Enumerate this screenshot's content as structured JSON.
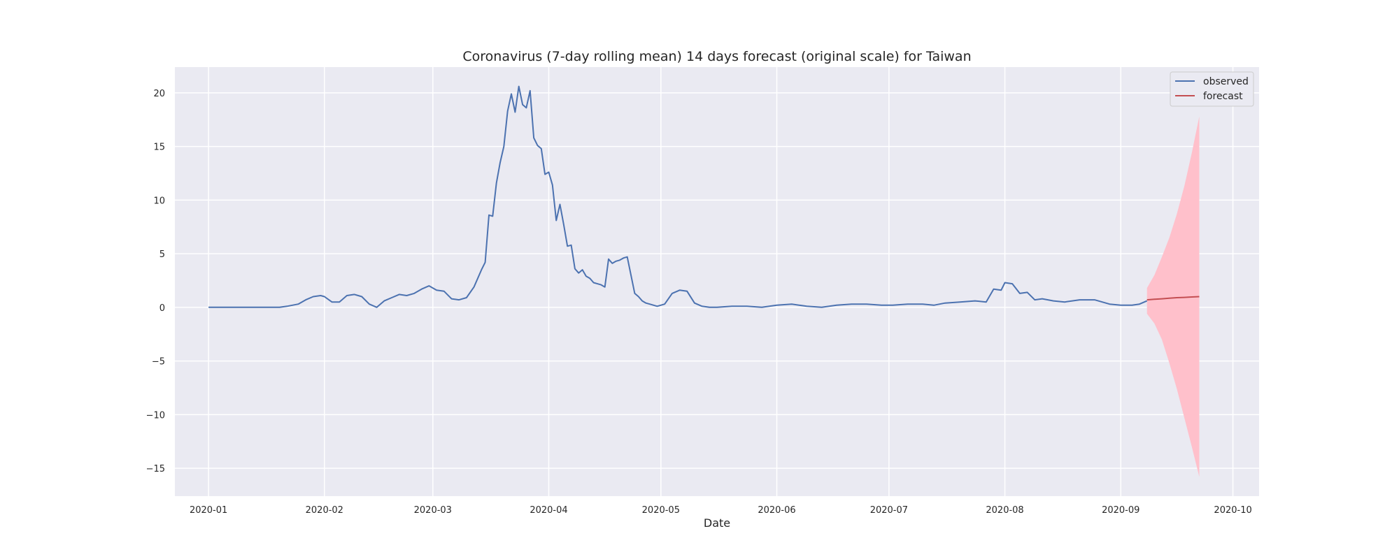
{
  "chart_data": {
    "type": "line",
    "title": "Coronavirus (7-day rolling mean) 14 days forecast (original scale) for Taiwan",
    "xlabel": "Date",
    "ylabel": "",
    "xlim": [
      "2019-12-23",
      "2020-10-08"
    ],
    "ylim": [
      -17.6,
      22.4
    ],
    "x_ticks": [
      "2020-01",
      "2020-02",
      "2020-03",
      "2020-04",
      "2020-05",
      "2020-06",
      "2020-07",
      "2020-08",
      "2020-09",
      "2020-10"
    ],
    "y_ticks": [
      20,
      15,
      10,
      5,
      0,
      -5,
      -10,
      -15
    ],
    "y_tick_labels": [
      "20",
      "15",
      "10",
      "5",
      "0",
      "−5",
      "−10",
      "−15"
    ],
    "grid": true,
    "legend_position": "top-right",
    "colors": {
      "background": "#eaeaf2",
      "grid": "#ffffff",
      "observed": "#4c72b0",
      "forecast": "#c44e52",
      "confidence_band": "#ffc0cb"
    },
    "series": [
      {
        "name": "observed",
        "x": [
          "2020-01-01",
          "2020-01-05",
          "2020-01-10",
          "2020-01-15",
          "2020-01-20",
          "2020-01-22",
          "2020-01-25",
          "2020-01-27",
          "2020-01-29",
          "2020-01-31",
          "2020-02-01",
          "2020-02-03",
          "2020-02-05",
          "2020-02-07",
          "2020-02-09",
          "2020-02-11",
          "2020-02-13",
          "2020-02-15",
          "2020-02-17",
          "2020-02-19",
          "2020-02-21",
          "2020-02-23",
          "2020-02-25",
          "2020-02-27",
          "2020-02-29",
          "2020-03-02",
          "2020-03-04",
          "2020-03-06",
          "2020-03-08",
          "2020-03-10",
          "2020-03-12",
          "2020-03-14",
          "2020-03-15",
          "2020-03-16",
          "2020-03-17",
          "2020-03-18",
          "2020-03-19",
          "2020-03-20",
          "2020-03-21",
          "2020-03-22",
          "2020-03-23",
          "2020-03-24",
          "2020-03-25",
          "2020-03-26",
          "2020-03-27",
          "2020-03-28",
          "2020-03-29",
          "2020-03-30",
          "2020-03-31",
          "2020-04-01",
          "2020-04-02",
          "2020-04-03",
          "2020-04-04",
          "2020-04-05",
          "2020-04-06",
          "2020-04-07",
          "2020-04-08",
          "2020-04-09",
          "2020-04-10",
          "2020-04-11",
          "2020-04-12",
          "2020-04-13",
          "2020-04-14",
          "2020-04-15",
          "2020-04-16",
          "2020-04-17",
          "2020-04-18",
          "2020-04-19",
          "2020-04-20",
          "2020-04-21",
          "2020-04-22",
          "2020-04-24",
          "2020-04-25",
          "2020-04-26",
          "2020-04-27",
          "2020-04-28",
          "2020-04-30",
          "2020-05-02",
          "2020-05-04",
          "2020-05-06",
          "2020-05-08",
          "2020-05-10",
          "2020-05-12",
          "2020-05-14",
          "2020-05-16",
          "2020-05-20",
          "2020-05-24",
          "2020-05-28",
          "2020-06-01",
          "2020-06-05",
          "2020-06-09",
          "2020-06-13",
          "2020-06-17",
          "2020-06-21",
          "2020-06-25",
          "2020-06-29",
          "2020-07-02",
          "2020-07-06",
          "2020-07-10",
          "2020-07-13",
          "2020-07-16",
          "2020-07-20",
          "2020-07-24",
          "2020-07-27",
          "2020-07-29",
          "2020-07-31",
          "2020-08-01",
          "2020-08-03",
          "2020-08-05",
          "2020-08-07",
          "2020-08-09",
          "2020-08-11",
          "2020-08-14",
          "2020-08-17",
          "2020-08-21",
          "2020-08-25",
          "2020-08-29",
          "2020-09-01",
          "2020-09-04",
          "2020-09-06",
          "2020-09-08"
        ],
        "values": [
          0,
          0,
          0,
          0,
          0,
          0.1,
          0.3,
          0.7,
          1.0,
          1.1,
          1.0,
          0.5,
          0.5,
          1.1,
          1.2,
          1.0,
          0.3,
          0.0,
          0.6,
          0.9,
          1.2,
          1.1,
          1.3,
          1.7,
          2.0,
          1.6,
          1.5,
          0.8,
          0.7,
          0.9,
          1.9,
          3.5,
          4.2,
          8.6,
          8.5,
          11.6,
          13.5,
          15.0,
          18.3,
          19.9,
          18.2,
          20.6,
          18.9,
          18.6,
          20.2,
          15.8,
          15.1,
          14.8,
          12.4,
          12.6,
          11.4,
          8.1,
          9.6,
          7.7,
          5.7,
          5.8,
          3.6,
          3.2,
          3.5,
          2.9,
          2.7,
          2.3,
          2.2,
          2.1,
          1.9,
          4.5,
          4.1,
          4.3,
          4.4,
          4.6,
          4.7,
          1.3,
          1.0,
          0.6,
          0.4,
          0.3,
          0.1,
          0.3,
          1.3,
          1.6,
          1.5,
          0.4,
          0.1,
          0,
          0,
          0.1,
          0.1,
          0,
          0.2,
          0.3,
          0.1,
          0,
          0.2,
          0.3,
          0.3,
          0.2,
          0.2,
          0.3,
          0.3,
          0.2,
          0.4,
          0.5,
          0.6,
          0.5,
          1.7,
          1.6,
          2.3,
          2.2,
          1.3,
          1.4,
          0.7,
          0.8,
          0.6,
          0.5,
          0.7,
          0.7,
          0.3,
          0.2,
          0.2,
          0.3,
          0.6
        ]
      },
      {
        "name": "forecast",
        "x": [
          "2020-09-08",
          "2020-09-10",
          "2020-09-12",
          "2020-09-14",
          "2020-09-16",
          "2020-09-18",
          "2020-09-20",
          "2020-09-22"
        ],
        "values": [
          0.7,
          0.75,
          0.8,
          0.85,
          0.9,
          0.93,
          0.97,
          1.0
        ],
        "lower": [
          -0.6,
          -1.5,
          -3.0,
          -5.2,
          -7.6,
          -10.3,
          -13.0,
          -15.8
        ],
        "upper": [
          1.8,
          3.0,
          4.7,
          6.5,
          8.7,
          11.3,
          14.4,
          17.8
        ]
      }
    ]
  }
}
